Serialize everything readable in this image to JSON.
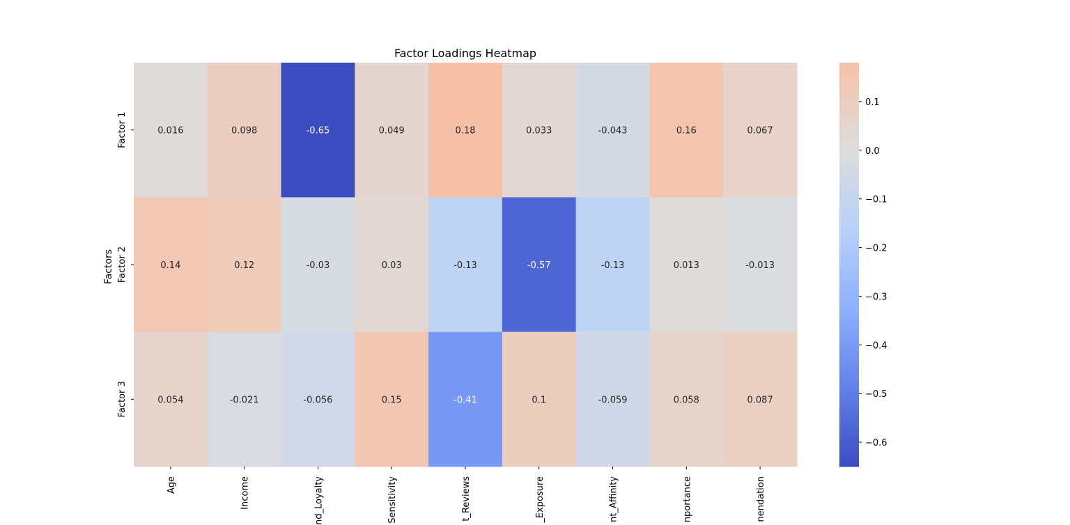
{
  "chart_data": {
    "type": "heatmap",
    "title": "Factor Loadings Heatmap",
    "xlabel": "",
    "ylabel": "Factors",
    "columns": [
      "Age",
      "Income",
      "nd_Loyalty",
      "Sensitivity",
      "t_Reviews",
      "_Exposure",
      "nt_Affinity",
      "nportance",
      "nendation"
    ],
    "rows": [
      "Factor 1",
      "Factor 2",
      "Factor 3"
    ],
    "values": [
      [
        0.016,
        0.098,
        -0.65,
        0.049,
        0.18,
        0.033,
        -0.043,
        0.16,
        0.067
      ],
      [
        0.14,
        0.12,
        -0.03,
        0.03,
        -0.13,
        -0.57,
        -0.13,
        0.013,
        -0.013
      ],
      [
        0.054,
        -0.021,
        -0.056,
        0.15,
        -0.41,
        0.1,
        -0.059,
        0.058,
        0.087
      ]
    ],
    "value_labels": [
      [
        "0.016",
        "0.098",
        "-0.65",
        "0.049",
        "0.18",
        "0.033",
        "-0.043",
        "0.16",
        "0.067"
      ],
      [
        "0.14",
        "0.12",
        "-0.03",
        "0.03",
        "-0.13",
        "-0.57",
        "-0.13",
        "0.013",
        "-0.013"
      ],
      [
        "0.054",
        "-0.021",
        "-0.056",
        "0.15",
        "-0.41",
        "0.1",
        "-0.059",
        "0.058",
        "0.087"
      ]
    ],
    "colormap": "coolwarm",
    "color_range": [
      -0.65,
      0.18
    ],
    "center": 0,
    "colorbar": {
      "ticks": [
        0.1,
        0.0,
        -0.1,
        -0.2,
        -0.3,
        -0.4,
        -0.5,
        -0.6
      ],
      "tick_labels": [
        "0.1",
        "0.0",
        "−0.1",
        "−0.2",
        "−0.3",
        "−0.4",
        "−0.5",
        "−0.6"
      ]
    },
    "grid": false
  }
}
